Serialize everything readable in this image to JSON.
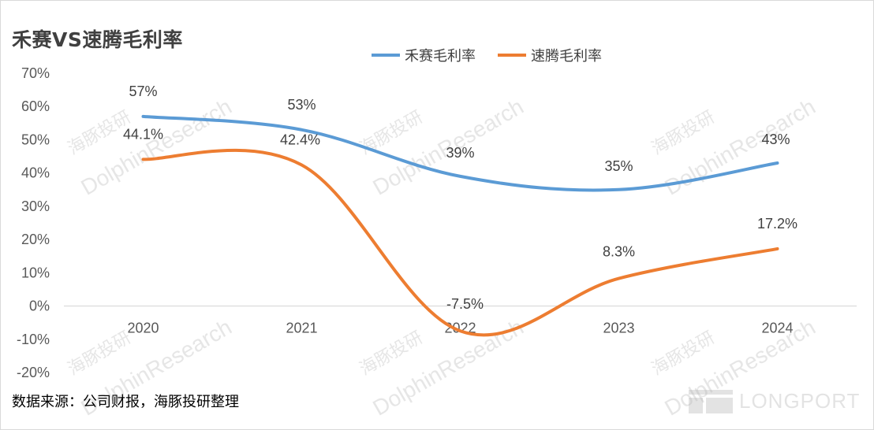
{
  "title": "禾赛VS速腾毛利率",
  "source": "数据来源：公司财报，海豚投研整理",
  "watermark": {
    "brand": "LONGPORT",
    "text_cn": "海豚投研",
    "text_en": "DolphinResearch"
  },
  "chart_data": {
    "type": "line",
    "title": "禾赛VS速腾毛利率",
    "categories": [
      "2020",
      "2021",
      "2022",
      "2023",
      "2024"
    ],
    "ylim": [
      -20,
      70
    ],
    "yticks": [
      70,
      60,
      50,
      40,
      30,
      20,
      10,
      0,
      -10,
      -20
    ],
    "ytick_labels": [
      "70%",
      "60%",
      "50%",
      "40%",
      "30%",
      "20%",
      "10%",
      "0%",
      "-10%",
      "-20%"
    ],
    "legend_position": "top",
    "grid": false,
    "series": [
      {
        "name": "禾赛毛利率",
        "color": "#5B9BD5",
        "values": [
          57,
          53,
          39,
          35,
          43
        ],
        "labels": [
          "57%",
          "53%",
          "39%",
          "35%",
          "43%"
        ]
      },
      {
        "name": "速腾毛利率",
        "color": "#ED7D31",
        "values": [
          44.1,
          42.4,
          -7.5,
          8.3,
          17.2
        ],
        "labels": [
          "44.1%",
          "42.4%",
          "-7.5%",
          "8.3%",
          "17.2%"
        ]
      }
    ]
  }
}
